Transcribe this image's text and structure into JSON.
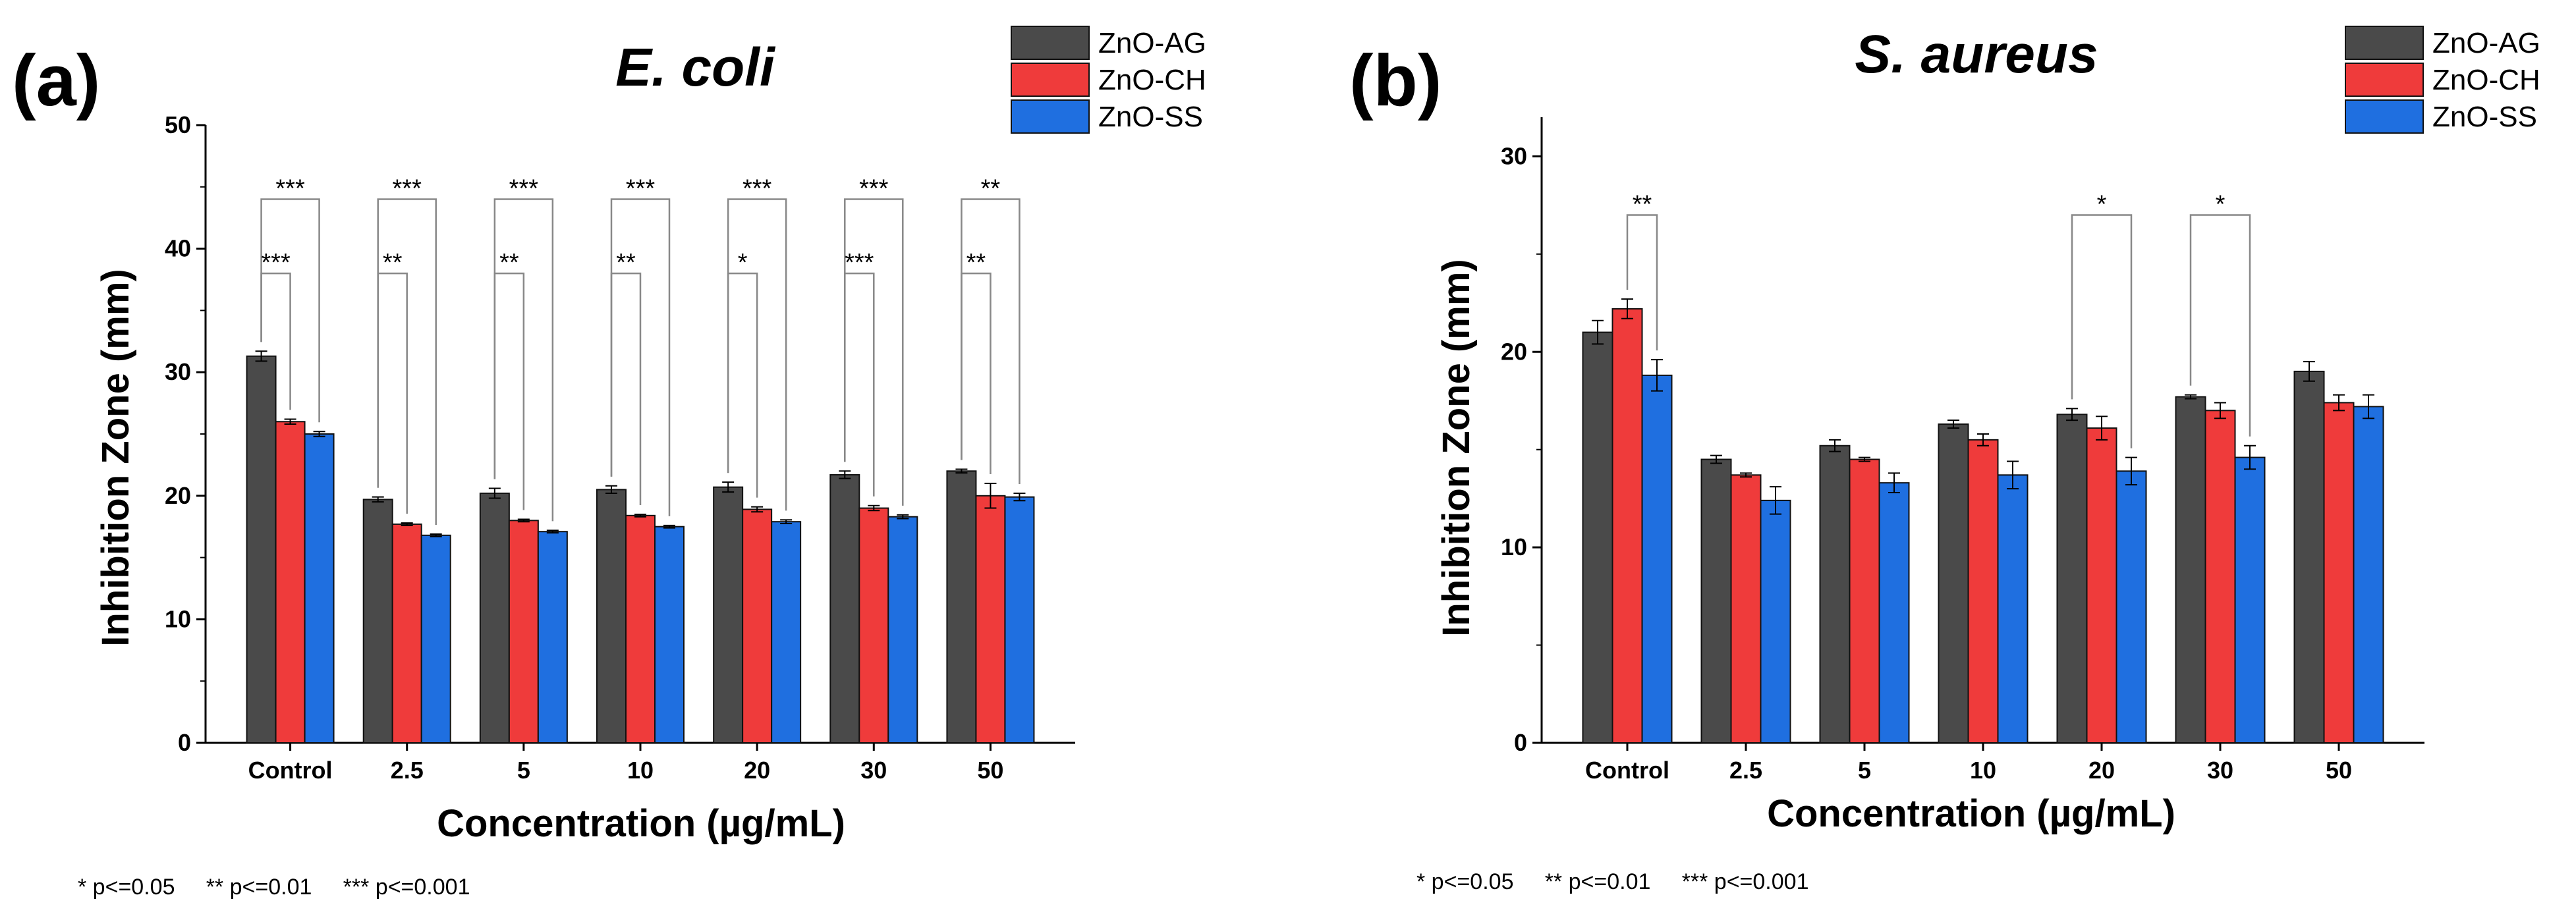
{
  "colors": {
    "ZnO-AG": "#4a4a4a",
    "ZnO-CH": "#ef3b3b",
    "ZnO-SS": "#1f6fe0"
  },
  "footnote_text": "* p<=0.05     ** p<=0.01     *** p<=0.001",
  "chart_data": [
    {
      "panel": "(a)",
      "type": "bar",
      "title": "E. coli",
      "xlabel": "Concentration (µg/mL)",
      "ylabel": "Inhibition Zone (mm)",
      "ylim": [
        0,
        50
      ],
      "yticks": [
        0,
        10,
        20,
        30,
        40,
        50
      ],
      "categories": [
        "Control",
        "2.5",
        "5",
        "10",
        "20",
        "30",
        "50"
      ],
      "series": [
        {
          "name": "ZnO-AG",
          "values": [
            31.3,
            19.7,
            20.2,
            20.5,
            20.7,
            21.7,
            22.0
          ],
          "errors": [
            0.4,
            0.2,
            0.4,
            0.3,
            0.4,
            0.3,
            0.15
          ]
        },
        {
          "name": "ZnO-CH",
          "values": [
            26.0,
            17.7,
            18.0,
            18.4,
            18.9,
            19.0,
            20.0
          ],
          "errors": [
            0.2,
            0.1,
            0.1,
            0.1,
            0.2,
            0.2,
            1.0
          ]
        },
        {
          "name": "ZnO-SS",
          "values": [
            25.0,
            16.8,
            17.1,
            17.5,
            17.9,
            18.3,
            19.9
          ],
          "errors": [
            0.2,
            0.1,
            0.1,
            0.1,
            0.15,
            0.15,
            0.3
          ]
        }
      ],
      "significance": [
        {
          "category": "Control",
          "comparison": "ZnO-AG vs ZnO-SS",
          "level": 44,
          "label": "***"
        },
        {
          "category": "Control",
          "comparison": "ZnO-AG vs ZnO-CH",
          "level": 38,
          "label": "***"
        },
        {
          "category": "2.5",
          "comparison": "ZnO-AG vs ZnO-SS",
          "level": 44,
          "label": "***"
        },
        {
          "category": "2.5",
          "comparison": "ZnO-AG vs ZnO-CH",
          "level": 38,
          "label": "**"
        },
        {
          "category": "5",
          "comparison": "ZnO-AG vs ZnO-SS",
          "level": 44,
          "label": "***"
        },
        {
          "category": "5",
          "comparison": "ZnO-AG vs ZnO-CH",
          "level": 38,
          "label": "**"
        },
        {
          "category": "10",
          "comparison": "ZnO-AG vs ZnO-SS",
          "level": 44,
          "label": "***"
        },
        {
          "category": "10",
          "comparison": "ZnO-AG vs ZnO-CH",
          "level": 38,
          "label": "**"
        },
        {
          "category": "20",
          "comparison": "ZnO-AG vs ZnO-SS",
          "level": 44,
          "label": "***"
        },
        {
          "category": "20",
          "comparison": "ZnO-AG vs ZnO-CH",
          "level": 38,
          "label": "*"
        },
        {
          "category": "30",
          "comparison": "ZnO-AG vs ZnO-SS",
          "level": 44,
          "label": "***"
        },
        {
          "category": "30",
          "comparison": "ZnO-AG vs ZnO-CH",
          "level": 38,
          "label": "***"
        },
        {
          "category": "50",
          "comparison": "ZnO-AG vs ZnO-SS",
          "level": 44,
          "label": "**"
        },
        {
          "category": "50",
          "comparison": "ZnO-AG vs ZnO-CH",
          "level": 38,
          "label": "**"
        }
      ]
    },
    {
      "panel": "(b)",
      "type": "bar",
      "title": "S. aureus",
      "xlabel": "Concentration (µg/mL)",
      "ylabel": "Inhibition Zone (mm)",
      "ylim": [
        0,
        32
      ],
      "yticks": [
        0,
        10,
        20,
        30
      ],
      "categories": [
        "Control",
        "2.5",
        "5",
        "10",
        "20",
        "30",
        "50"
      ],
      "series": [
        {
          "name": "ZnO-AG",
          "values": [
            21.0,
            14.5,
            15.2,
            16.3,
            16.8,
            17.7,
            19.0
          ],
          "errors": [
            0.6,
            0.2,
            0.3,
            0.2,
            0.3,
            0.1,
            0.5
          ]
        },
        {
          "name": "ZnO-CH",
          "values": [
            22.2,
            13.7,
            14.5,
            15.5,
            16.1,
            17.0,
            17.4
          ],
          "errors": [
            0.5,
            0.1,
            0.1,
            0.3,
            0.6,
            0.4,
            0.4
          ]
        },
        {
          "name": "ZnO-SS",
          "values": [
            18.8,
            12.4,
            13.3,
            13.7,
            13.9,
            14.6,
            17.2
          ],
          "errors": [
            0.8,
            0.7,
            0.5,
            0.7,
            0.7,
            0.6,
            0.6
          ]
        }
      ],
      "significance": [
        {
          "category": "Control",
          "comparison": "ZnO-CH vs ZnO-SS",
          "level": 27,
          "label": "**"
        },
        {
          "category": "20",
          "comparison": "ZnO-AG vs ZnO-SS",
          "level": 27,
          "label": "*"
        },
        {
          "category": "30",
          "comparison": "ZnO-AG vs ZnO-SS",
          "level": 27,
          "label": "*"
        }
      ]
    }
  ]
}
